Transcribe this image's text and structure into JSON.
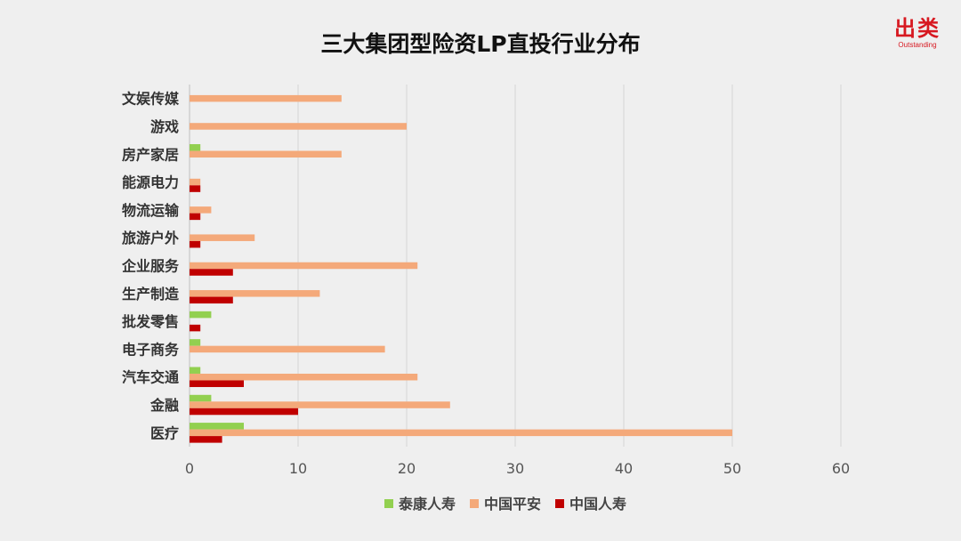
{
  "brand": {
    "name": "出类",
    "tagline": "Outstanding",
    "color": "#d71921"
  },
  "chart_data": {
    "type": "bar",
    "orientation": "horizontal",
    "title": "三大集团型险资LP直投行业分布",
    "categories": [
      "文娱传媒",
      "游戏",
      "房产家居",
      "能源电力",
      "物流运输",
      "旅游户外",
      "企业服务",
      "生产制造",
      "批发零售",
      "电子商务",
      "汽车交通",
      "金融",
      "医疗"
    ],
    "series": [
      {
        "name": "泰康人寿",
        "color": "#92d050",
        "values": [
          0,
          0,
          1,
          0,
          0,
          0,
          0,
          0,
          2,
          1,
          1,
          2,
          5
        ]
      },
      {
        "name": "中国平安",
        "color": "#f4a97a",
        "values": [
          14,
          20,
          14,
          1,
          2,
          6,
          21,
          12,
          0,
          18,
          21,
          24,
          50
        ]
      },
      {
        "name": "中国人寿",
        "color": "#c00000",
        "values": [
          0,
          0,
          0,
          1,
          1,
          1,
          4,
          4,
          1,
          0,
          5,
          10,
          3
        ]
      }
    ],
    "xlim": [
      0,
      60
    ],
    "xticks": [
      0,
      10,
      20,
      30,
      40,
      50,
      60
    ],
    "xlabel": "",
    "ylabel": "",
    "grid": true,
    "legend_position": "bottom"
  }
}
